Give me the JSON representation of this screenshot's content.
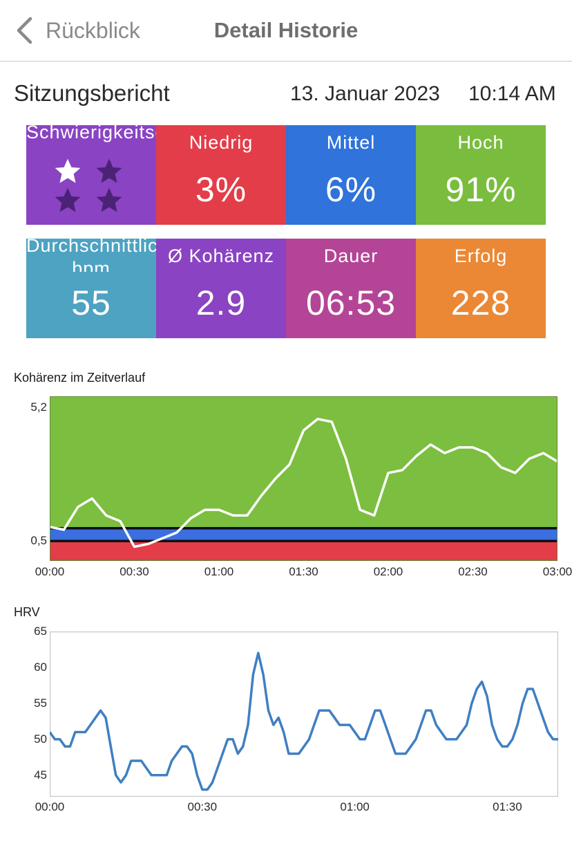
{
  "nav": {
    "back_label": "Rückblick",
    "title": "Detail Historie"
  },
  "report": {
    "title": "Sitzungsbericht",
    "date": "13. Januar 2023",
    "time": "10:14 AM"
  },
  "difficulty": {
    "label": "Schwierigkeitsgrad",
    "stars_filled": 1,
    "stars_total": 4
  },
  "tiles_row1": [
    {
      "label": "Niedrig",
      "value": "3%",
      "color": "#e33d49"
    },
    {
      "label": "Mittel",
      "value": "6%",
      "color": "#2f73db"
    },
    {
      "label": "Hoch",
      "value": "91%",
      "color": "#7abd3e"
    }
  ],
  "tiles_row2": [
    {
      "label": "Durchschnittliche bpm",
      "value": "55",
      "color": "#4da3c1"
    },
    {
      "label": "Ø Kohärenz",
      "value": "2.9",
      "color": "#8a43c2"
    },
    {
      "label": "Dauer",
      "value": "06:53",
      "color": "#b44596"
    },
    {
      "label": "Erfolg",
      "value": "228",
      "color": "#ea8836"
    }
  ],
  "colors": {
    "difficulty_tile": "#8a43c2",
    "star_filled": "#ffffff",
    "star_empty": "#4b2275"
  },
  "chart_data": [
    {
      "type": "line",
      "title": "Kohärenz im Zeitverlauf",
      "xlabel": "",
      "ylabel": "",
      "x_ticks": [
        "00:00",
        "00:30",
        "01:00",
        "01:30",
        "02:00",
        "02:30",
        "03:00"
      ],
      "y_ticks": [
        "5,2",
        "0,5"
      ],
      "ylim": [
        -0.2,
        5.6
      ],
      "xlim_minutes": [
        0,
        180
      ],
      "bands": [
        {
          "name": "Niedrig",
          "from": -0.2,
          "to": 0.5,
          "color": "#e33d49"
        },
        {
          "name": "Mittel",
          "from": 0.5,
          "to": 0.95,
          "color": "#3b6fe0"
        },
        {
          "name": "Hoch",
          "from": 0.95,
          "to": 5.6,
          "color": "#7cbe3f"
        }
      ],
      "series": [
        {
          "color": "#ffffff",
          "x_minutes": [
            0,
            5,
            10,
            15,
            20,
            25,
            30,
            35,
            40,
            45,
            50,
            55,
            60,
            65,
            70,
            75,
            80,
            85,
            90,
            95,
            100,
            105,
            110,
            115,
            120,
            125,
            130,
            135,
            140,
            145,
            150,
            155,
            160,
            165,
            170,
            175,
            180
          ],
          "values": [
            1.0,
            0.9,
            1.7,
            2.0,
            1.4,
            1.2,
            0.3,
            0.4,
            0.6,
            0.8,
            1.3,
            1.6,
            1.6,
            1.4,
            1.4,
            2.1,
            2.7,
            3.2,
            4.4,
            4.8,
            4.7,
            3.4,
            1.6,
            1.4,
            2.9,
            3.0,
            3.5,
            3.9,
            3.6,
            3.8,
            3.8,
            3.6,
            3.1,
            2.9,
            3.4,
            3.6,
            3.3
          ]
        }
      ]
    },
    {
      "type": "line",
      "title": "HRV",
      "xlabel": "",
      "ylabel": "",
      "x_ticks": [
        "00:00",
        "00:30",
        "01:00",
        "01:30"
      ],
      "y_ticks": [
        "65",
        "60",
        "55",
        "50",
        "45"
      ],
      "ylim": [
        42,
        65
      ],
      "xlim_minutes": [
        0,
        100
      ],
      "series": [
        {
          "color": "#3f7fc2",
          "x_minutes": [
            0,
            1,
            2,
            3,
            4,
            5,
            6,
            7,
            8,
            9,
            10,
            11,
            12,
            13,
            14,
            15,
            16,
            17,
            18,
            19,
            20,
            21,
            22,
            23,
            24,
            25,
            26,
            27,
            28,
            29,
            30,
            31,
            32,
            33,
            34,
            35,
            36,
            37,
            38,
            39,
            40,
            41,
            42,
            43,
            44,
            45,
            46,
            47,
            48,
            49,
            50,
            51,
            52,
            53,
            54,
            55,
            56,
            57,
            58,
            59,
            60,
            61,
            62,
            63,
            64,
            65,
            66,
            67,
            68,
            69,
            70,
            71,
            72,
            73,
            74,
            75,
            76,
            77,
            78,
            79,
            80,
            81,
            82,
            83,
            84,
            85,
            86,
            87,
            88,
            89,
            90,
            91,
            92,
            93,
            94,
            95,
            96,
            97,
            98,
            99,
            100
          ],
          "values": [
            51,
            50,
            50,
            49,
            49,
            51,
            51,
            51,
            52,
            53,
            54,
            53,
            49,
            45,
            44,
            45,
            47,
            47,
            47,
            46,
            45,
            45,
            45,
            45,
            47,
            48,
            49,
            49,
            48,
            45,
            43,
            43,
            44,
            46,
            48,
            50,
            50,
            48,
            49,
            52,
            59,
            62,
            59,
            54,
            52,
            53,
            51,
            48,
            48,
            48,
            49,
            50,
            52,
            54,
            54,
            54,
            53,
            52,
            52,
            52,
            51,
            50,
            50,
            52,
            54,
            54,
            52,
            50,
            48,
            48,
            48,
            49,
            50,
            52,
            54,
            54,
            52,
            51,
            50,
            50,
            50,
            51,
            52,
            55,
            57,
            58,
            56,
            52,
            50,
            49,
            49,
            50,
            52,
            55,
            57,
            57,
            55,
            53,
            51,
            50,
            50
          ]
        }
      ]
    }
  ]
}
